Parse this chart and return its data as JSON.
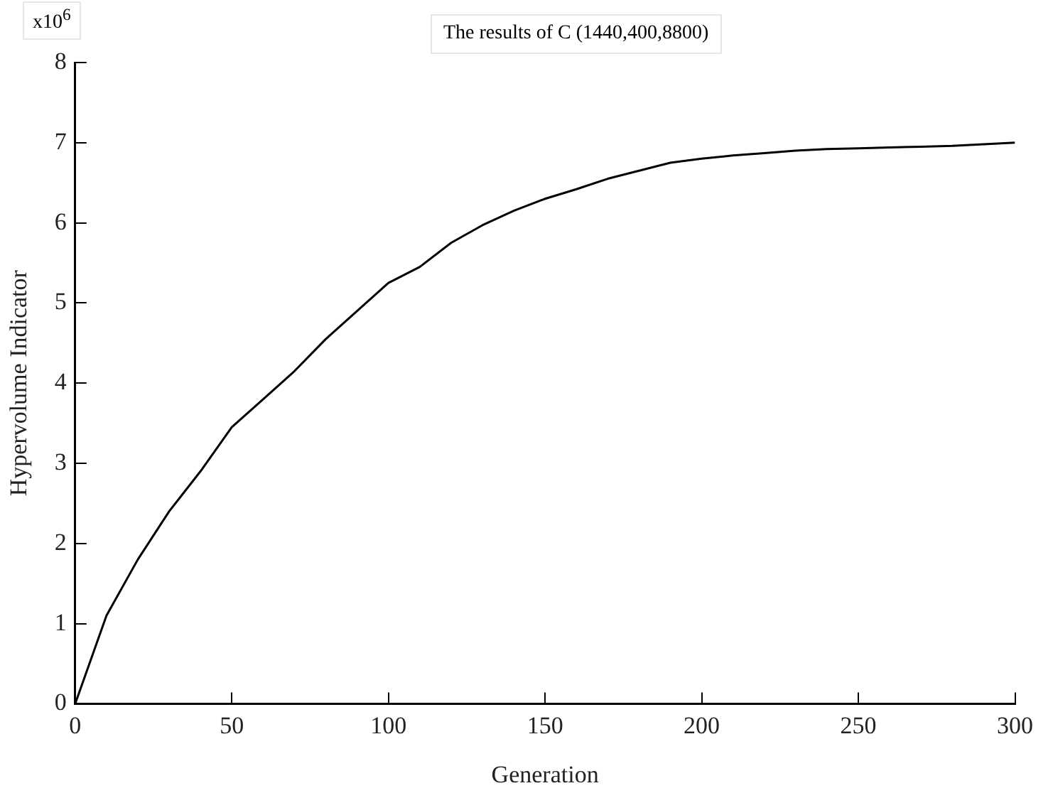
{
  "chart_data": {
    "type": "line",
    "title": "The results of C (1440,400,8800)",
    "xlabel": "Generation",
    "ylabel": "Hypervolume Indicator",
    "annotations": [
      "x10$^{6}$"
    ],
    "x": [
      0,
      10,
      20,
      30,
      40,
      50,
      60,
      70,
      80,
      90,
      100,
      110,
      120,
      130,
      140,
      150,
      160,
      170,
      180,
      190,
      200,
      210,
      220,
      230,
      240,
      250,
      260,
      270,
      280,
      290,
      300
    ],
    "series": [
      {
        "color": "#000000",
        "values": [
          0,
          1.1,
          1.8,
          2.4,
          2.9,
          3.45,
          3.8,
          4.15,
          4.55,
          4.9,
          5.25,
          5.45,
          5.75,
          5.97,
          6.15,
          6.3,
          6.42,
          6.55,
          6.65,
          6.75,
          6.8,
          6.84,
          6.87,
          6.9,
          6.92,
          6.93,
          6.94,
          6.95,
          6.96,
          6.98,
          7.0
        ]
      }
    ],
    "xlim": [
      0,
      300
    ],
    "xticks": [
      0,
      50,
      100,
      150,
      200,
      250,
      300
    ],
    "ylim": [
      0,
      8
    ],
    "yticks": [
      0,
      1,
      2,
      3,
      4,
      5,
      6,
      7,
      8
    ],
    "grid": false,
    "legend": false,
    "marker": "none",
    "line_style": "solid"
  }
}
